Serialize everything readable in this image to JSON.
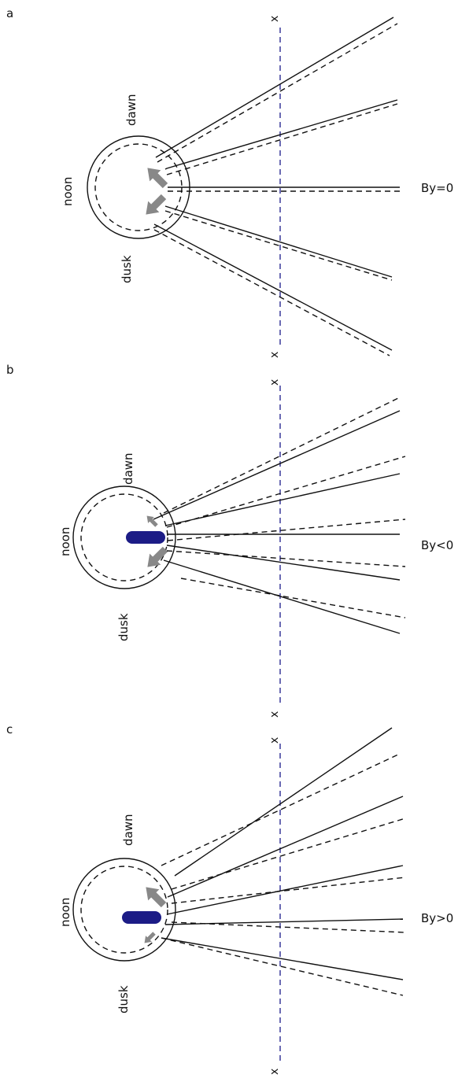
{
  "panels": [
    {
      "id": "a",
      "label": "a",
      "dawn": "dawn",
      "noon": "noon",
      "dusk": "dusk",
      "condition": "By=0"
    },
    {
      "id": "b",
      "label": "b",
      "dawn": "dawn",
      "noon": "noon",
      "dusk": "dusk",
      "condition": "By<0"
    },
    {
      "id": "c",
      "label": "c",
      "dawn": "dawn",
      "noon": "noon",
      "dusk": "dusk",
      "condition": "By>0"
    }
  ],
  "axis_marker": "x",
  "colors": {
    "axis": "#1a1a8a",
    "arrow": "#888888",
    "bar": "#1c1c86",
    "line": "#111111"
  }
}
